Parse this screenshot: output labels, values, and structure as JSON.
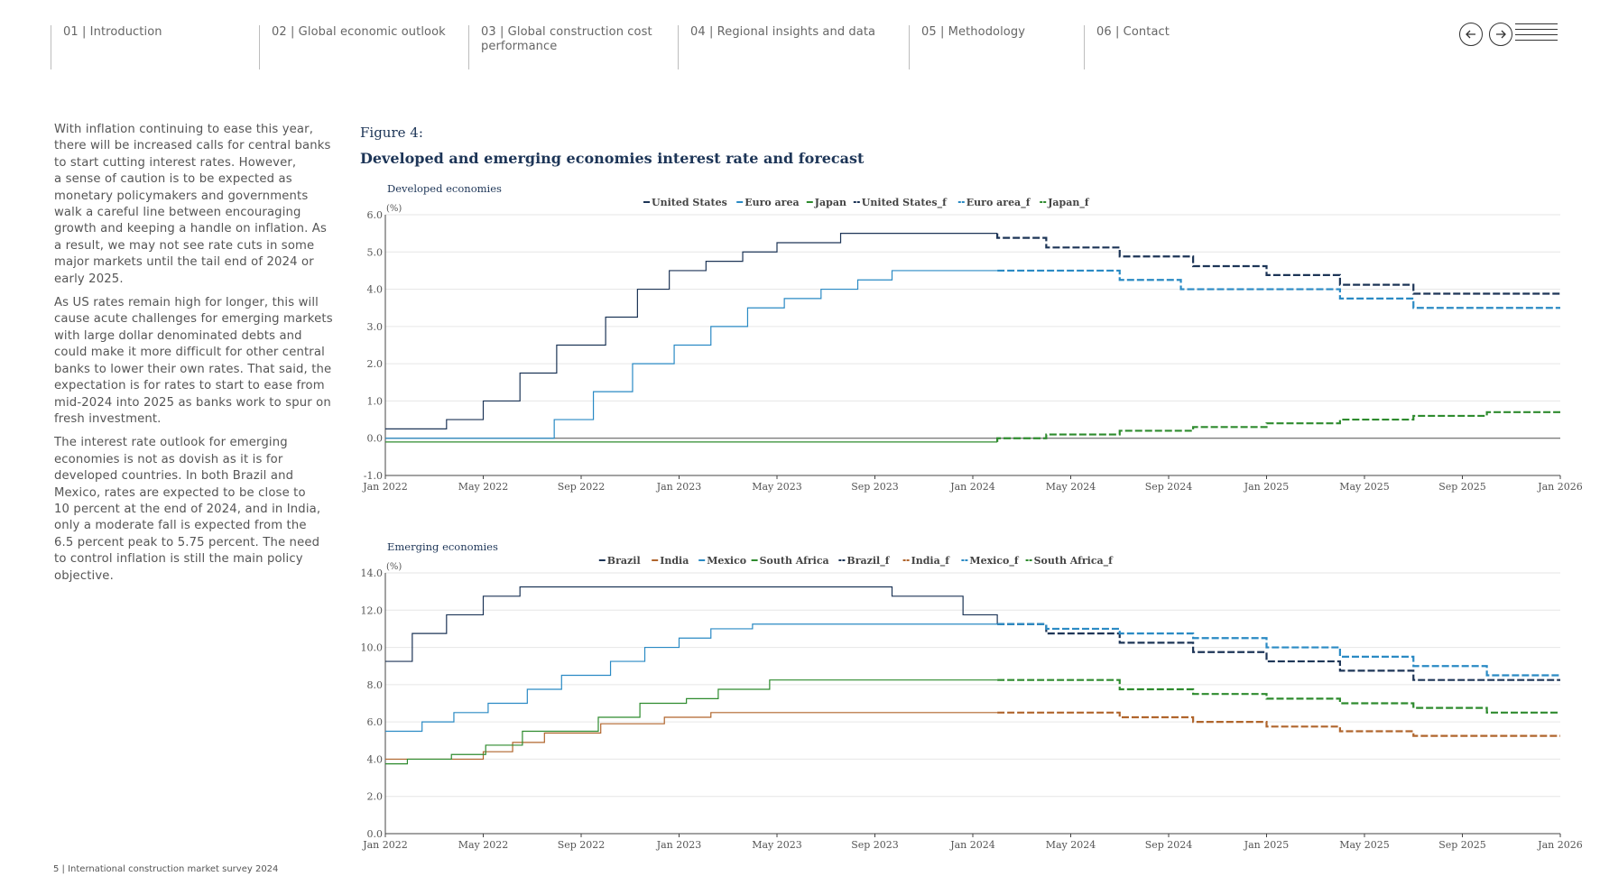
{
  "nav": {
    "items": [
      {
        "label": "01 | Introduction"
      },
      {
        "label": "02 | Global economic outlook"
      },
      {
        "label": "03 | Global construction cost\n      performance"
      },
      {
        "label": "04 | Regional insights and data"
      },
      {
        "label": "05 | Methodology"
      },
      {
        "label": "06 | Contact"
      }
    ],
    "prev_icon": "arrow-left-icon",
    "next_icon": "arrow-right-icon",
    "menu_icon": "hamburger-menu-icon"
  },
  "body": {
    "paragraphs": [
      "With inflation continuing to ease this year,\nthere will be increased calls for central banks\nto start cutting interest rates. However,\na sense of caution is to be expected as\nmonetary policymakers and governments\nwalk a careful line between encouraging\ngrowth and keeping a handle on inflation. As\na result, we may not see rate cuts in some\nmajor markets until the tail end of 2024 or\nearly 2025.",
      "As US rates remain high for longer, this will\ncause acute challenges for emerging markets\nwith large dollar denominated debts and\ncould make it more difficult for other central\nbanks to lower their own rates. That said, the\nexpectation is for rates to start to ease from\nmid-2024 into 2025 as banks work to spur on\nfresh investment.",
      "The interest rate outlook for emerging\neconomies is not as dovish as it is for\ndeveloped countries. In both Brazil and\nMexico, rates are expected to be close to\n10 percent at the end of 2024, and in India,\nonly a moderate fall is expected from the\n6.5 percent peak to 5.75 percent. The need\nto control inflation is still the main policy\nobjective."
    ]
  },
  "figure": {
    "label": "Figure 4:",
    "title": "Developed and emerging economies interest rate and forecast"
  },
  "footer": {
    "text": "5  |  International construction market survey 2024"
  },
  "colors": {
    "navy": "#1d3557",
    "blue": "#2a8ac4",
    "green": "#2e8b2e",
    "orange": "#b0652c",
    "text": "#555555"
  },
  "chart_data": [
    {
      "type": "line",
      "title": "Developed economies",
      "ylabel": "(%)",
      "ylim": [
        -1.0,
        6.0
      ],
      "yticks": [
        "6.0",
        "5.0",
        "4.0",
        "3.0",
        "2.0",
        "1.0",
        "0.0",
        "-1.0"
      ],
      "xlim": [
        0,
        48
      ],
      "xticks": [
        {
          "label": "Jan 2022",
          "m": 0
        },
        {
          "label": "May 2022",
          "m": 4
        },
        {
          "label": "Sep 2022",
          "m": 8
        },
        {
          "label": "Jan 2023",
          "m": 12
        },
        {
          "label": "May 2023",
          "m": 16
        },
        {
          "label": "Sep 2023",
          "m": 20
        },
        {
          "label": "Jan 2024",
          "m": 24
        },
        {
          "label": "May 2024",
          "m": 28
        },
        {
          "label": "Sep 2024",
          "m": 32
        },
        {
          "label": "Jan 2025",
          "m": 36
        },
        {
          "label": "May 2025",
          "m": 40
        },
        {
          "label": "Sep 2025",
          "m": 44
        },
        {
          "label": "Jan 2026",
          "m": 48
        }
      ],
      "legend": [
        "United States",
        "Euro area",
        "Japan",
        "United States_f",
        "Euro area_f",
        "Japan_f"
      ],
      "series": [
        {
          "name": "United States",
          "color": "#1d3557",
          "dash": false,
          "points": [
            [
              0,
              0.25
            ],
            [
              2.5,
              0.5
            ],
            [
              4,
              1.0
            ],
            [
              5.5,
              1.75
            ],
            [
              7,
              2.5
            ],
            [
              9,
              3.25
            ],
            [
              10.3,
              4.0
            ],
            [
              11.6,
              4.5
            ],
            [
              13.1,
              4.75
            ],
            [
              14.6,
              5.0
            ],
            [
              16,
              5.25
            ],
            [
              18.6,
              5.5
            ],
            [
              25,
              5.5
            ]
          ]
        },
        {
          "name": "Euro area",
          "color": "#2a8ac4",
          "dash": false,
          "points": [
            [
              0,
              0.0
            ],
            [
              6.9,
              0.0
            ],
            [
              6.9,
              0.5
            ],
            [
              8.5,
              1.25
            ],
            [
              10.1,
              2.0
            ],
            [
              11.8,
              2.5
            ],
            [
              13.3,
              3.0
            ],
            [
              14.8,
              3.5
            ],
            [
              16.3,
              3.75
            ],
            [
              17.8,
              4.0
            ],
            [
              19.3,
              4.25
            ],
            [
              20.7,
              4.5
            ],
            [
              25,
              4.5
            ]
          ]
        },
        {
          "name": "Japan",
          "color": "#2e8b2e",
          "dash": false,
          "points": [
            [
              0,
              -0.1
            ],
            [
              25,
              -0.1
            ]
          ]
        },
        {
          "name": "United States_f",
          "color": "#1d3557",
          "dash": true,
          "points": [
            [
              25,
              5.5
            ],
            [
              25,
              5.38
            ],
            [
              27,
              5.12
            ],
            [
              30,
              4.88
            ],
            [
              33,
              4.62
            ],
            [
              36,
              4.38
            ],
            [
              39,
              4.12
            ],
            [
              42,
              3.88
            ],
            [
              48,
              3.88
            ]
          ]
        },
        {
          "name": "Euro area_f",
          "color": "#2a8ac4",
          "dash": true,
          "points": [
            [
              25,
              4.5
            ],
            [
              30,
              4.25
            ],
            [
              32.5,
              4.0
            ],
            [
              39,
              3.75
            ],
            [
              42,
              3.5
            ],
            [
              48,
              3.5
            ]
          ]
        },
        {
          "name": "Japan_f",
          "color": "#2e8b2e",
          "dash": true,
          "points": [
            [
              25,
              -0.1
            ],
            [
              25,
              0.0
            ],
            [
              27,
              0.1
            ],
            [
              30,
              0.2
            ],
            [
              33,
              0.3
            ],
            [
              36,
              0.4
            ],
            [
              39,
              0.5
            ],
            [
              42,
              0.6
            ],
            [
              45,
              0.7
            ],
            [
              48,
              0.7
            ]
          ]
        }
      ]
    },
    {
      "type": "line",
      "title": "Emerging economies",
      "ylabel": "(%)",
      "ylim": [
        0.0,
        14.0
      ],
      "yticks": [
        "14.0",
        "12.0",
        "10.0",
        "8.0",
        "6.0",
        "4.0",
        "2.0",
        "0.0"
      ],
      "xlim": [
        0,
        48
      ],
      "xticks": [
        {
          "label": "Jan 2022",
          "m": 0
        },
        {
          "label": "May 2022",
          "m": 4
        },
        {
          "label": "Sep 2022",
          "m": 8
        },
        {
          "label": "Jan 2023",
          "m": 12
        },
        {
          "label": "May 2023",
          "m": 16
        },
        {
          "label": "Sep 2023",
          "m": 20
        },
        {
          "label": "Jan 2024",
          "m": 24
        },
        {
          "label": "May 2024",
          "m": 28
        },
        {
          "label": "Sep 2024",
          "m": 32
        },
        {
          "label": "Jan 2025",
          "m": 36
        },
        {
          "label": "May 2025",
          "m": 40
        },
        {
          "label": "Sep 2025",
          "m": 44
        },
        {
          "label": "Jan 2026",
          "m": 48
        }
      ],
      "legend": [
        "Brazil",
        "India",
        "Mexico",
        "South Africa",
        "Brazil_f",
        "India_f",
        "Mexico_f",
        "South Africa_f"
      ],
      "series": [
        {
          "name": "Brazil",
          "color": "#1d3557",
          "dash": false,
          "points": [
            [
              0,
              9.25
            ],
            [
              1.1,
              10.75
            ],
            [
              2.5,
              11.75
            ],
            [
              4,
              12.75
            ],
            [
              5.5,
              13.25
            ],
            [
              20.7,
              13.25
            ],
            [
              20.7,
              12.75
            ],
            [
              23.6,
              11.75
            ],
            [
              25,
              11.25
            ]
          ]
        },
        {
          "name": "India",
          "color": "#b0652c",
          "dash": false,
          "points": [
            [
              0,
              4.0
            ],
            [
              4,
              4.4
            ],
            [
              5.2,
              4.9
            ],
            [
              6.5,
              5.4
            ],
            [
              8.8,
              5.9
            ],
            [
              11.4,
              6.25
            ],
            [
              13.3,
              6.5
            ],
            [
              25,
              6.5
            ]
          ]
        },
        {
          "name": "Mexico",
          "color": "#2a8ac4",
          "dash": false,
          "points": [
            [
              0,
              5.5
            ],
            [
              1.5,
              6.0
            ],
            [
              2.8,
              6.5
            ],
            [
              4.2,
              7.0
            ],
            [
              5.8,
              7.75
            ],
            [
              7.2,
              8.5
            ],
            [
              9.2,
              9.25
            ],
            [
              10.6,
              10.0
            ],
            [
              12,
              10.5
            ],
            [
              13.3,
              11.0
            ],
            [
              15,
              11.25
            ],
            [
              25,
              11.25
            ]
          ]
        },
        {
          "name": "South Africa",
          "color": "#2e8b2e",
          "dash": false,
          "points": [
            [
              0,
              3.75
            ],
            [
              0.9,
              4.0
            ],
            [
              2.7,
              4.25
            ],
            [
              4.1,
              4.75
            ],
            [
              5.6,
              5.5
            ],
            [
              8.7,
              6.25
            ],
            [
              10.4,
              7.0
            ],
            [
              12.3,
              7.25
            ],
            [
              13.6,
              7.75
            ],
            [
              15.7,
              8.25
            ],
            [
              25,
              8.25
            ]
          ]
        },
        {
          "name": "Brazil_f",
          "color": "#1d3557",
          "dash": true,
          "points": [
            [
              25,
              11.25
            ],
            [
              27,
              10.75
            ],
            [
              30,
              10.25
            ],
            [
              33,
              9.75
            ],
            [
              36,
              9.25
            ],
            [
              39,
              8.75
            ],
            [
              42,
              8.25
            ],
            [
              48,
              8.25
            ]
          ]
        },
        {
          "name": "India_f",
          "color": "#b0652c",
          "dash": true,
          "points": [
            [
              25,
              6.5
            ],
            [
              30,
              6.25
            ],
            [
              33,
              6.0
            ],
            [
              36,
              5.75
            ],
            [
              39,
              5.5
            ],
            [
              42,
              5.25
            ],
            [
              48,
              5.25
            ]
          ]
        },
        {
          "name": "Mexico_f",
          "color": "#2a8ac4",
          "dash": true,
          "points": [
            [
              25,
              11.25
            ],
            [
              27,
              11.0
            ],
            [
              30,
              10.75
            ],
            [
              33,
              10.5
            ],
            [
              36,
              10.0
            ],
            [
              39,
              9.5
            ],
            [
              42,
              9.0
            ],
            [
              45,
              8.5
            ],
            [
              48,
              8.5
            ]
          ]
        },
        {
          "name": "South Africa_f",
          "color": "#2e8b2e",
          "dash": true,
          "points": [
            [
              25,
              8.25
            ],
            [
              30,
              7.75
            ],
            [
              33,
              7.5
            ],
            [
              36,
              7.25
            ],
            [
              39,
              7.0
            ],
            [
              42,
              6.75
            ],
            [
              45,
              6.5
            ],
            [
              48,
              6.5
            ]
          ]
        }
      ]
    }
  ]
}
